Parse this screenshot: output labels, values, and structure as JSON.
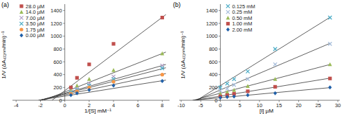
{
  "chart_data": [
    {
      "type": "scatter",
      "title": "(a)",
      "x_label": "1/[S] mM⁻¹",
      "y_label": "1/V (ΔA₄₇₂ₙₘ/min)⁻¹",
      "x": [
        0.5,
        1,
        2,
        4,
        8
      ],
      "xlim": [
        -4.3,
        8.6
      ],
      "ylim": [
        0,
        1500
      ],
      "xticks": [
        -4,
        -2,
        0,
        2,
        4,
        6,
        8
      ],
      "yticks": [
        0,
        200,
        400,
        600,
        800,
        1000,
        1200,
        1400
      ],
      "grid": false,
      "legend": "top-left",
      "series": [
        {
          "name": "28.0 µM",
          "color": "#c0504d",
          "marker": "square",
          "values": [
            200,
            350,
            560,
            880,
            1290
          ],
          "fit_x": [
            -1.05,
            8.3
          ],
          "fit_values": [
            0,
            1337
          ]
        },
        {
          "name": "14.0 µM",
          "color": "#9bbb59",
          "marker": "triangle",
          "values": [
            150,
            230,
            330,
            470,
            730
          ],
          "fit_x": [
            -1.73,
            8.3
          ],
          "fit_values": [
            0,
            752
          ]
        },
        {
          "name": "7.00 µM",
          "color": "#b3a2c7",
          "marker": "x",
          "values": [
            130,
            180,
            260,
            370,
            540
          ],
          "fit_x": [
            -2.04,
            8.3
          ],
          "fit_values": [
            0,
            558
          ]
        },
        {
          "name": "3.50 µM",
          "color": "#4bacc6",
          "marker": "x",
          "values": [
            120,
            160,
            230,
            330,
            500
          ],
          "fit_x": [
            -2.04,
            8.3
          ],
          "fit_values": [
            0,
            507
          ]
        },
        {
          "name": "1.75 µM",
          "color": "#f79646",
          "marker": "circle",
          "values": [
            100,
            140,
            200,
            290,
            400
          ],
          "fit_x": [
            -2.1,
            8.3
          ],
          "fit_values": [
            0,
            417
          ]
        },
        {
          "name": "0.00 µM",
          "color": "#1f5fa8",
          "marker": "diamond",
          "values": [
            80,
            110,
            160,
            230,
            300
          ],
          "fit_x": [
            -2.17,
            8.3
          ],
          "fit_values": [
            0,
            314
          ]
        }
      ]
    },
    {
      "type": "scatter",
      "title": "(b)",
      "x_label": "[I] µM",
      "y_label": "1/V (ΔA₄₇₂ₙₘ/min)⁻¹",
      "x": [
        0,
        1.75,
        3.5,
        7,
        14,
        28
      ],
      "xlim": [
        -10.5,
        30.5
      ],
      "ylim": [
        0,
        1500
      ],
      "xticks": [
        -10,
        -5,
        0,
        5,
        10,
        15,
        20,
        25,
        30
      ],
      "yticks": [
        0,
        200,
        400,
        600,
        800,
        1000,
        1200,
        1400
      ],
      "grid": false,
      "legend": "top-left",
      "series": [
        {
          "name": "0.125 mM",
          "color": "#4bacc6",
          "marker": "x",
          "values": [
            200,
            260,
            330,
            450,
            800,
            1290
          ],
          "fit_x": [
            -6,
            28
          ],
          "fit_values": [
            0,
            1294
          ]
        },
        {
          "name": "0.25 mM",
          "color": "#a6bddb",
          "marker": "x",
          "values": [
            150,
            180,
            240,
            330,
            560,
            880
          ],
          "fit_x": [
            -6.2,
            28
          ],
          "fit_values": [
            0,
            888
          ]
        },
        {
          "name": "0.50 mM",
          "color": "#9bbb59",
          "marker": "triangle",
          "values": [
            100,
            130,
            160,
            220,
            330,
            560
          ],
          "fit_x": [
            -6.9,
            28
          ],
          "fit_values": [
            0,
            558
          ]
        },
        {
          "name": "1.00 mM",
          "color": "#c0504d",
          "marker": "square",
          "values": [
            60,
            80,
            100,
            140,
            210,
            340
          ],
          "fit_x": [
            -6.5,
            28
          ],
          "fit_values": [
            0,
            345
          ]
        },
        {
          "name": "2.00 mM",
          "color": "#1f5fa8",
          "marker": "diamond",
          "values": [
            40,
            50,
            60,
            80,
            110,
            200
          ],
          "fit_x": [
            -7.1,
            28
          ],
          "fit_values": [
            0,
            197
          ]
        }
      ]
    }
  ]
}
